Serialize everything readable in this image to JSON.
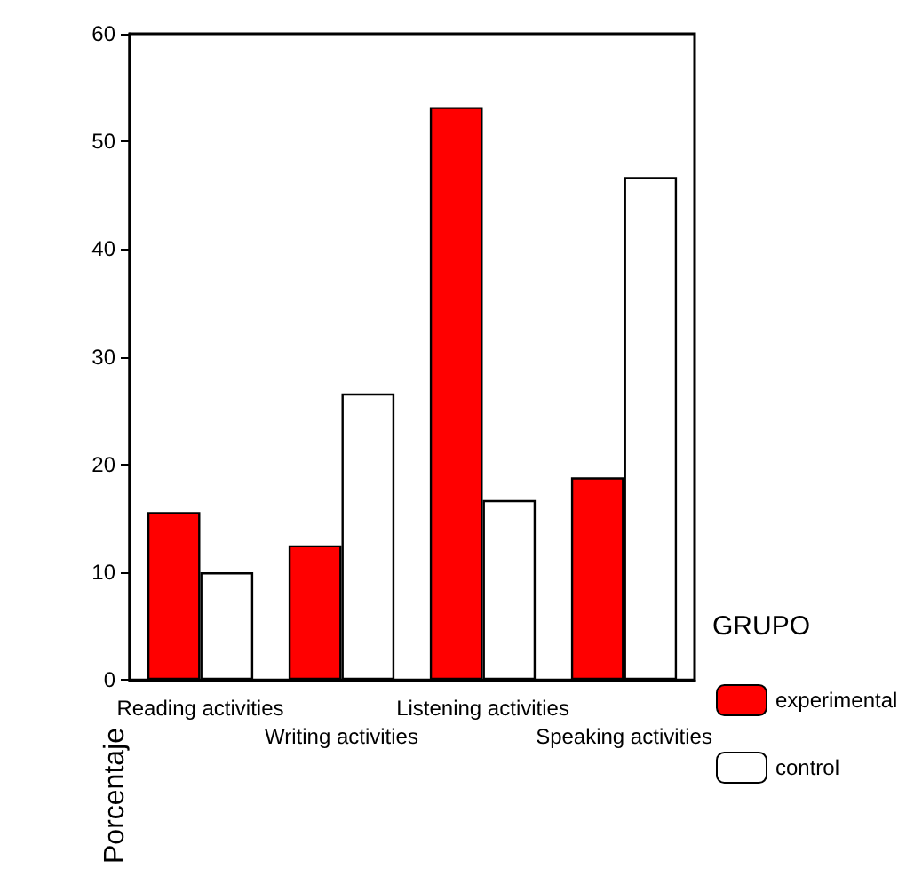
{
  "chart_data": {
    "type": "bar",
    "ylabel": "Porcentaje",
    "legend_title": "GRUPO",
    "categories": [
      "Reading activities",
      "Writing activities",
      "Listening activities",
      "Speaking activities"
    ],
    "series": [
      {
        "name": "experimental",
        "color": "#ff0000",
        "values": [
          15.6,
          12.5,
          53.2,
          18.8
        ]
      },
      {
        "name": "control",
        "color": "#ffffff",
        "values": [
          10.0,
          26.6,
          16.7,
          46.7
        ]
      }
    ],
    "ylim": [
      0,
      60
    ],
    "yticks": [
      0,
      10,
      20,
      30,
      40,
      50,
      60
    ],
    "grid": false,
    "legend": "right"
  }
}
